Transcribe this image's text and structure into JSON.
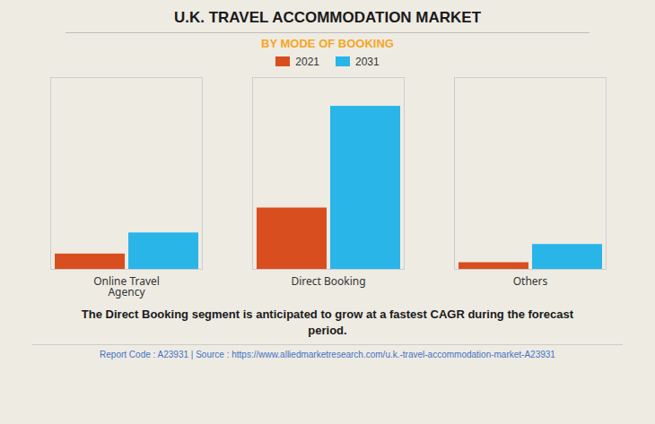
{
  "chart_data": {
    "type": "bar",
    "title": "U.K. TRAVEL ACCOMMODATION MARKET",
    "subtitle": "BY MODE OF BOOKING",
    "categories": [
      "Online Travel\nAgency",
      "Direct Booking",
      "Others"
    ],
    "series": [
      {
        "name": "2021",
        "color": "#d94e1f",
        "values": [
          0.8,
          3.2,
          0.35
        ]
      },
      {
        "name": "2031",
        "color": "#29b5e8",
        "values": [
          1.9,
          8.5,
          1.3
        ]
      }
    ],
    "ylim": [
      0,
      10
    ],
    "grid": false,
    "tick_labels": "x",
    "legend": "upper center",
    "annotations": [
      "The Direct Booking segment is anticipated to grow at a fastest CAGR during the forecast\nperiod.",
      "Report Code : A23931  |  Source : https://www.alliedmarketresearch.com/u.k.-travel-accommodation-market-A23931"
    ]
  }
}
